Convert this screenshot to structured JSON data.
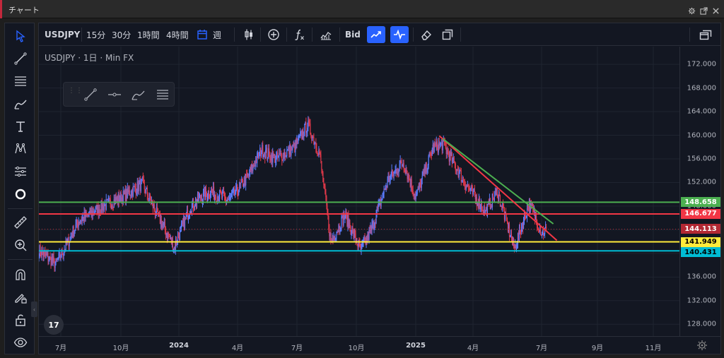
{
  "window": {
    "title": "チャート"
  },
  "toolbar": {
    "symbol": "USDJPY",
    "intervals": [
      "15分",
      "30分",
      "1時間",
      "4時間"
    ],
    "week_label": "週",
    "bid_label": "Bid"
  },
  "legend": {
    "text": "USDJPY · 1日 · Min FX"
  },
  "logo": {
    "text": "17"
  },
  "price_axis": {
    "ticks": [
      "172.000",
      "168.000",
      "164.000",
      "160.000",
      "156.000",
      "152.000",
      "148.000",
      "144.000",
      "140.000",
      "136.000",
      "132.000",
      "128.000"
    ],
    "badges": [
      {
        "label": "148.658",
        "color": "#4caf50",
        "text_color": "#ffffff"
      },
      {
        "label": "146.677",
        "color": "#f23645",
        "text_color": "#ffffff"
      },
      {
        "label": "144.113",
        "color": "#b22833",
        "text_color": "#ffffff"
      },
      {
        "label": "141.949",
        "color": "#ffeb3b",
        "text_color": "#000000"
      },
      {
        "label": "140.431",
        "color": "#00bcd4",
        "text_color": "#000000"
      }
    ]
  },
  "time_axis": {
    "labels": [
      "7月",
      "10月",
      "2024",
      "4月",
      "7月",
      "10月",
      "2025",
      "4月",
      "7月",
      "9月",
      "11月"
    ]
  },
  "chart_data": {
    "type": "candlestick",
    "symbol": "USDJPY",
    "ylim": [
      126,
      175
    ],
    "x_range": [
      "2023-06-20",
      "2025-12-10"
    ],
    "horizontal_lines": [
      {
        "value": 148.658,
        "color": "#4caf50"
      },
      {
        "value": 146.677,
        "color": "#f23645"
      },
      {
        "value": 141.949,
        "color": "#ffeb3b"
      },
      {
        "value": 140.431,
        "color": "#00bcd4"
      }
    ],
    "last_price": 144.113,
    "trend_lines": [
      {
        "color": "#f23645",
        "from": {
          "date": "2025-01-05",
          "price": 159.9
        },
        "to": {
          "date": "2025-06-20",
          "price": 142.2
        }
      },
      {
        "color": "#4caf50",
        "from": {
          "date": "2025-01-10",
          "price": 159.4
        },
        "to": {
          "date": "2025-06-15",
          "price": 145.0
        }
      }
    ],
    "price_path": [
      {
        "date": "2023-06-20",
        "close": 140.5
      },
      {
        "date": "2023-07-14",
        "close": 138.2
      },
      {
        "date": "2023-07-28",
        "close": 141.2
      },
      {
        "date": "2023-08-15",
        "close": 145.5
      },
      {
        "date": "2023-09-15",
        "close": 147.8
      },
      {
        "date": "2023-10-15",
        "close": 149.5
      },
      {
        "date": "2023-11-13",
        "close": 151.8
      },
      {
        "date": "2023-11-30",
        "close": 147.5
      },
      {
        "date": "2023-12-28",
        "close": 141.0
      },
      {
        "date": "2024-01-20",
        "close": 148.0
      },
      {
        "date": "2024-02-15",
        "close": 150.5
      },
      {
        "date": "2024-03-15",
        "close": 149.0
      },
      {
        "date": "2024-04-10",
        "close": 153.0
      },
      {
        "date": "2024-04-29",
        "close": 157.5
      },
      {
        "date": "2024-05-20",
        "close": 156.0
      },
      {
        "date": "2024-06-15",
        "close": 158.0
      },
      {
        "date": "2024-07-03",
        "close": 161.8
      },
      {
        "date": "2024-07-20",
        "close": 157.0
      },
      {
        "date": "2024-08-05",
        "close": 142.0
      },
      {
        "date": "2024-08-25",
        "close": 146.5
      },
      {
        "date": "2024-09-16",
        "close": 140.5
      },
      {
        "date": "2024-10-01",
        "close": 144.0
      },
      {
        "date": "2024-10-25",
        "close": 152.5
      },
      {
        "date": "2024-11-15",
        "close": 155.5
      },
      {
        "date": "2024-12-03",
        "close": 149.5
      },
      {
        "date": "2024-12-27",
        "close": 157.8
      },
      {
        "date": "2025-01-10",
        "close": 158.5
      },
      {
        "date": "2025-02-10",
        "close": 152.0
      },
      {
        "date": "2025-03-11",
        "close": 147.0
      },
      {
        "date": "2025-03-28",
        "close": 150.5
      },
      {
        "date": "2025-04-21",
        "close": 140.8
      },
      {
        "date": "2025-05-12",
        "close": 148.5
      },
      {
        "date": "2025-05-30",
        "close": 143.5
      },
      {
        "date": "2025-06-05",
        "close": 144.1
      }
    ]
  }
}
